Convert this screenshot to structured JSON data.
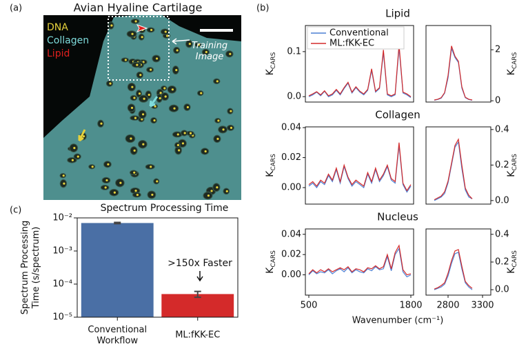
{
  "panel_labels": [
    "(a)",
    "(b)",
    "(c)"
  ],
  "image": {
    "title": "Avian Hyaline Cartilage",
    "channels": [
      {
        "name": "DNA",
        "color": "#e6d23c"
      },
      {
        "name": "Collagen",
        "color": "#7fdcdc"
      },
      {
        "name": "Lipid",
        "color": "#e0201e"
      }
    ],
    "annotation": "Training\nImage"
  },
  "chart_data": [
    {
      "type": "bar",
      "title": "Spectrum Processing Time",
      "ylabel": "Spectrum Processing\nTime (s/spectrum)",
      "categories": [
        "Conventional\nWorkflow",
        "ML:fKK-EC"
      ],
      "values": [
        0.007,
        5e-05
      ],
      "errors": [
        0.0003,
        1e-05
      ],
      "colors": [
        "#4a6fa5",
        "#d42a2a"
      ],
      "ylog": true,
      "ylim": [
        1e-05,
        0.01
      ],
      "yticks": [
        {
          "value": 1e-05,
          "label": "10⁻⁵"
        },
        {
          "value": 0.0001,
          "label": "10⁻⁴"
        },
        {
          "value": 0.001,
          "label": "10⁻³"
        },
        {
          "value": 0.01,
          "label": "10⁻²"
        }
      ],
      "annotation": ">150x Faster"
    },
    {
      "type": "line",
      "title": "Lipid",
      "ylabel": {
        "text": "K",
        "subscript": "CARS"
      },
      "legend": "upper left",
      "x": [
        500,
        550,
        600,
        650,
        700,
        750,
        800,
        850,
        900,
        950,
        1000,
        1050,
        1100,
        1150,
        1200,
        1250,
        1300,
        1350,
        1400,
        1450,
        1500,
        1550,
        1600,
        1650,
        1700,
        1750,
        1800
      ],
      "xlim": [
        456,
        1835
      ],
      "ylim": [
        -0.012,
        0.158
      ],
      "yticks": [
        {
          "value": 0,
          "label": "0.0"
        },
        0.1
      ],
      "series": [
        {
          "name": "Conventional",
          "color": "#4a7fd4",
          "values": [
            0.0,
            0.004,
            0.01,
            0.002,
            0.012,
            0.0,
            0.004,
            0.014,
            0.004,
            0.018,
            0.03,
            0.008,
            0.02,
            0.01,
            0.004,
            0.014,
            0.058,
            0.01,
            0.018,
            0.098,
            0.004,
            0.0,
            0.004,
            0.108,
            0.008,
            0.004,
            -0.002
          ]
        },
        {
          "name": "ML:fKK-EC",
          "color": "#d42a2a",
          "values": [
            0.002,
            0.006,
            0.011,
            0.004,
            0.013,
            0.002,
            0.006,
            0.016,
            0.006,
            0.02,
            0.032,
            0.01,
            0.022,
            0.012,
            0.006,
            0.016,
            0.062,
            0.012,
            0.02,
            0.104,
            0.006,
            0.002,
            0.006,
            0.116,
            0.01,
            0.006,
            0.0
          ]
        }
      ]
    },
    {
      "type": "line",
      "ylabel": {
        "text": "K",
        "subscript": "CARS"
      },
      "x": [
        2600,
        2650,
        2700,
        2750,
        2800,
        2850,
        2900,
        2950,
        3000,
        3050,
        3100,
        3150
      ],
      "xlim": [
        2480,
        3420
      ],
      "ylim": [
        -0.05,
        2.95
      ],
      "yticks": [
        0,
        2
      ],
      "series": [
        {
          "color": "#4a7fd4",
          "values": [
            0.02,
            0.05,
            0.1,
            0.3,
            0.9,
            2.05,
            1.7,
            1.5,
            0.5,
            0.12,
            0.05,
            0.02
          ]
        },
        {
          "color": "#d42a2a",
          "values": [
            0.03,
            0.06,
            0.12,
            0.32,
            1.0,
            2.15,
            1.75,
            1.55,
            0.55,
            0.14,
            0.06,
            0.03
          ]
        }
      ]
    },
    {
      "type": "line",
      "title": "Collagen",
      "ylabel": {
        "text": "K",
        "subscript": "CARS"
      },
      "x": [
        500,
        550,
        600,
        650,
        700,
        750,
        800,
        850,
        900,
        950,
        1000,
        1050,
        1100,
        1150,
        1200,
        1250,
        1300,
        1350,
        1400,
        1450,
        1500,
        1550,
        1600,
        1650,
        1700,
        1750,
        1800
      ],
      "xlim": [
        456,
        1835
      ],
      "ylim": [
        -0.011,
        0.0405
      ],
      "yticks": [
        {
          "value": 0,
          "label": "0.00"
        },
        {
          "value": 0.02,
          "label": "0.02"
        },
        {
          "value": 0.04,
          "label": "0.04"
        }
      ],
      "series": [
        {
          "color": "#4a7fd4",
          "values": [
            0.001,
            0.003,
            0.0,
            0.004,
            0.002,
            0.008,
            0.004,
            0.012,
            0.003,
            0.014,
            0.006,
            0.001,
            0.004,
            0.002,
            0.0,
            0.009,
            0.003,
            0.012,
            0.004,
            0.008,
            0.014,
            0.005,
            0.003,
            0.028,
            0.002,
            -0.003,
            0.001
          ]
        },
        {
          "color": "#d42a2a",
          "values": [
            0.002,
            0.004,
            0.001,
            0.005,
            0.003,
            0.009,
            0.005,
            0.013,
            0.004,
            0.015,
            0.007,
            0.002,
            0.005,
            0.003,
            0.001,
            0.01,
            0.004,
            0.013,
            0.005,
            0.009,
            0.015,
            0.006,
            0.004,
            0.03,
            0.003,
            -0.002,
            0.002
          ]
        }
      ]
    },
    {
      "type": "line",
      "ylabel": {
        "text": "K",
        "subscript": "CARS"
      },
      "x": [
        2600,
        2650,
        2700,
        2750,
        2800,
        2850,
        2900,
        2950,
        3000,
        3050,
        3100,
        3150
      ],
      "xlim": [
        2480,
        3420
      ],
      "ylim": [
        -0.02,
        0.415
      ],
      "yticks": [
        {
          "value": 0,
          "label": "0.0"
        },
        0.2,
        0.4
      ],
      "series": [
        {
          "color": "#4a7fd4",
          "values": [
            0.0,
            0.01,
            0.02,
            0.04,
            0.1,
            0.2,
            0.3,
            0.33,
            0.18,
            0.06,
            0.02,
            0.01
          ]
        },
        {
          "color": "#d42a2a",
          "values": [
            0.005,
            0.015,
            0.025,
            0.05,
            0.11,
            0.21,
            0.31,
            0.345,
            0.2,
            0.07,
            0.03,
            0.01
          ]
        }
      ]
    },
    {
      "type": "line",
      "title": "Nucleus",
      "ylabel": {
        "text": "K",
        "subscript": "CARS"
      },
      "xlabel": "Wavenumber (cm⁻¹)",
      "x": [
        500,
        550,
        600,
        650,
        700,
        750,
        800,
        850,
        900,
        950,
        1000,
        1050,
        1100,
        1150,
        1200,
        1250,
        1300,
        1350,
        1400,
        1450,
        1500,
        1550,
        1600,
        1650,
        1700,
        1750,
        1800
      ],
      "xlim": [
        456,
        1835
      ],
      "xticks": [
        500,
        1800
      ],
      "ylim": [
        -0.02,
        0.0453
      ],
      "yticks": [
        {
          "value": 0,
          "label": "0.00"
        },
        {
          "value": 0.02,
          "label": "0.02"
        },
        {
          "value": 0.04,
          "label": "0.04"
        }
      ],
      "series": [
        {
          "color": "#4a7fd4",
          "values": [
            0.0,
            0.004,
            0.001,
            0.003,
            0.002,
            0.005,
            0.001,
            0.004,
            0.006,
            0.003,
            0.007,
            0.002,
            0.005,
            0.003,
            0.002,
            0.006,
            0.004,
            0.008,
            0.005,
            0.006,
            0.018,
            0.004,
            0.02,
            0.026,
            0.003,
            -0.002,
            0.0
          ]
        },
        {
          "color": "#d42a2a",
          "values": [
            0.001,
            0.005,
            0.002,
            0.005,
            0.003,
            0.006,
            0.003,
            0.005,
            0.007,
            0.005,
            0.008,
            0.003,
            0.006,
            0.005,
            0.003,
            0.007,
            0.006,
            0.009,
            0.006,
            0.008,
            0.02,
            0.006,
            0.022,
            0.029,
            0.005,
            0.0,
            0.001
          ]
        }
      ]
    },
    {
      "type": "line",
      "ylabel": {
        "text": "K",
        "subscript": "CARS"
      },
      "x": [
        2600,
        2650,
        2700,
        2750,
        2800,
        2850,
        2900,
        2950,
        3000,
        3050,
        3100,
        3150
      ],
      "xlim": [
        2480,
        3420
      ],
      "xticks": [
        2800,
        3300
      ],
      "ylim": [
        -0.039,
        0.439
      ],
      "yticks": [
        {
          "value": 0,
          "label": "0.0"
        },
        0.2,
        0.4
      ],
      "series": [
        {
          "color": "#4a7fd4",
          "values": [
            0.0,
            0.01,
            0.02,
            0.04,
            0.1,
            0.19,
            0.26,
            0.27,
            0.15,
            0.05,
            0.02,
            0.0
          ]
        },
        {
          "color": "#d42a2a",
          "values": [
            0.005,
            0.015,
            0.03,
            0.05,
            0.12,
            0.21,
            0.28,
            0.29,
            0.17,
            0.06,
            0.03,
            0.01
          ]
        }
      ]
    }
  ]
}
